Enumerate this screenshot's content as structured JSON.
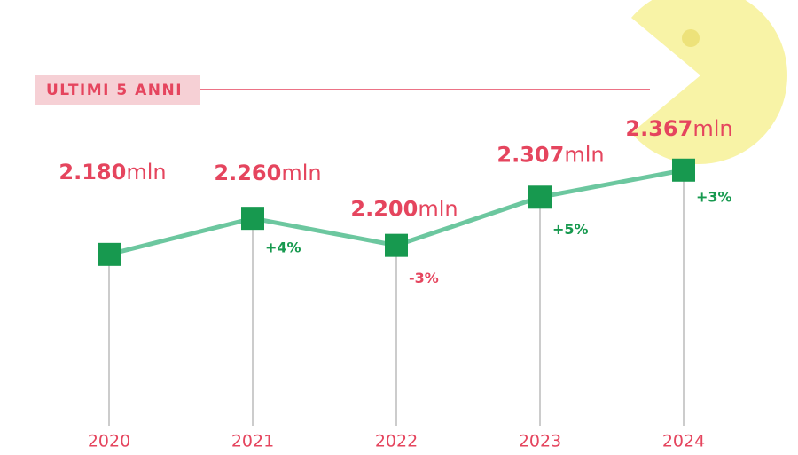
{
  "chart_data": {
    "type": "line",
    "title": "ULTIMI 5 ANNI",
    "categories": [
      "2020",
      "2021",
      "2022",
      "2023",
      "2024"
    ],
    "values": [
      2.18,
      2.26,
      2.2,
      2.307,
      2.367
    ],
    "value_labels": [
      "2.180",
      "2.260",
      "2.200",
      "2.307",
      "2.367"
    ],
    "value_unit": "mln",
    "changes": [
      null,
      4,
      -3,
      5,
      3
    ],
    "change_labels": [
      null,
      "+4%",
      "-3%",
      "+5%",
      "+3%"
    ],
    "ylim": [
      1.8,
      2.4
    ],
    "line_color": "#6cc79f",
    "marker_color": "#17994f",
    "label_color": "#e5455e",
    "positive_color": "#17994f",
    "negative_color": "#e5455e"
  }
}
